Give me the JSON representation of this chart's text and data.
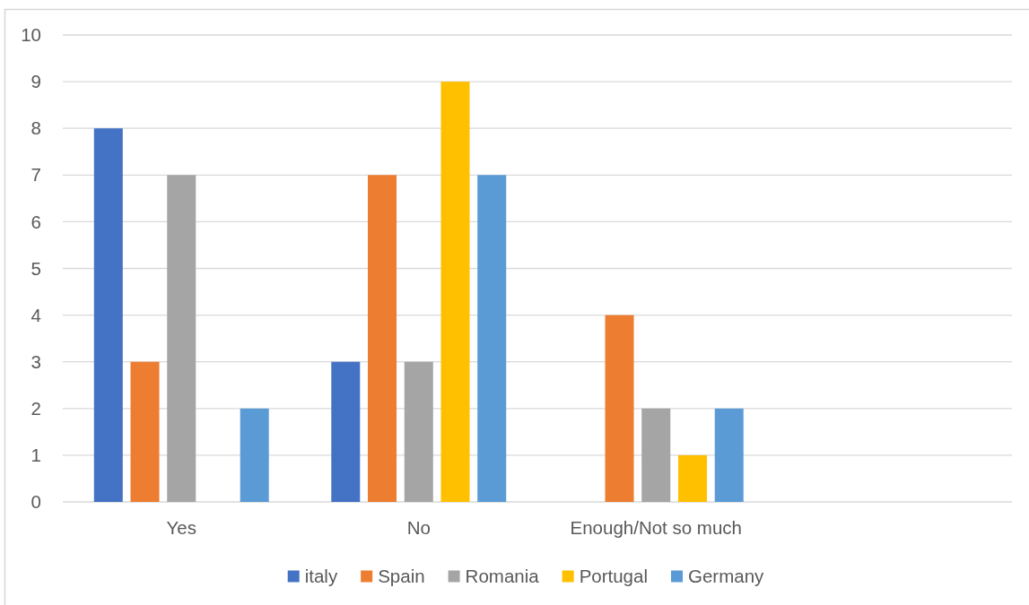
{
  "chart_data": {
    "type": "bar",
    "categories": [
      "Yes",
      "No",
      "Enough/Not so much",
      null
    ],
    "series": [
      {
        "name": "italy",
        "color": "#4472c4",
        "values": [
          8,
          3,
          null,
          null
        ]
      },
      {
        "name": "Spain",
        "color": "#ed7d31",
        "values": [
          3,
          7,
          4,
          null
        ]
      },
      {
        "name": "Romania",
        "color": "#a5a5a5",
        "values": [
          7,
          3,
          2,
          null
        ]
      },
      {
        "name": "Portugal",
        "color": "#ffc000",
        "values": [
          null,
          9,
          1,
          null
        ]
      },
      {
        "name": "Germany",
        "color": "#5b9bd5",
        "values": [
          2,
          7,
          2,
          null
        ]
      }
    ],
    "ylim": [
      0,
      10
    ],
    "yticks": [
      0,
      1,
      2,
      3,
      4,
      5,
      6,
      7,
      8,
      9,
      10
    ],
    "grid": "y",
    "legend": "bottom"
  }
}
